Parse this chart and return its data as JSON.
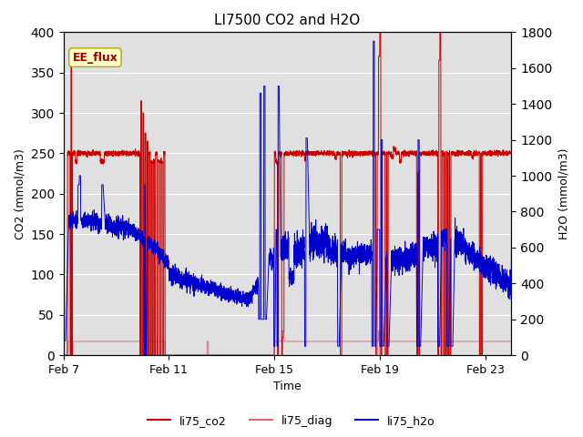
{
  "title": "LI7500 CO2 and H2O",
  "xlabel": "Time",
  "ylabel_left": "CO2 (mmol/m3)",
  "ylabel_right": "H2O (mmol/m3)",
  "ylim_left": [
    0,
    400
  ],
  "ylim_right": [
    0,
    1800
  ],
  "background_color": "#ffffff",
  "plot_bg_color": "#e0e0e0",
  "annotation_text": "EE_flux",
  "annotation_bg": "#ffffcc",
  "annotation_border": "#aaaa00",
  "x_ticks": [
    "Feb 7",
    "Feb 11",
    "Feb 15",
    "Feb 19",
    "Feb 23"
  ],
  "x_tick_pos": [
    0,
    4,
    8,
    12,
    16
  ],
  "legend_entries": [
    "li75_co2",
    "li75_diag",
    "li75_h2o"
  ],
  "co2_color": "#cc0000",
  "diag_color": "#dd6666",
  "h2o_color": "#0000cc",
  "total_days": 17.0,
  "n_points": 5000
}
